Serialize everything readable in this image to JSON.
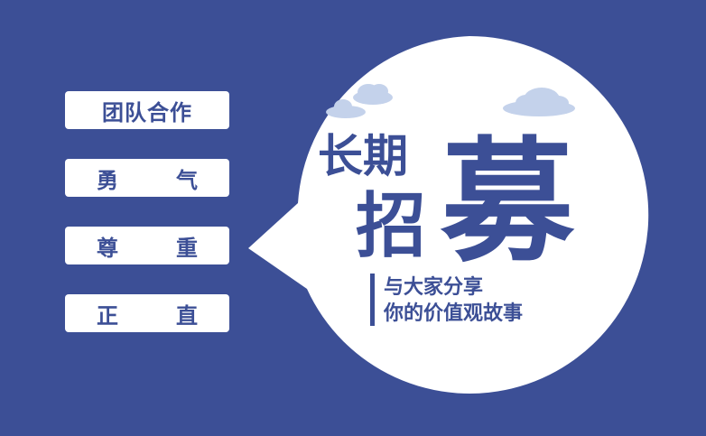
{
  "colors": {
    "background": "#3c4f96",
    "bubble": "#ffffff",
    "cloud": "#c4d2eb",
    "text": "#3c4f96"
  },
  "values": [
    "团队合作",
    "勇 气",
    "尊 重",
    "正 直"
  ],
  "values_split": [
    [
      "团队合作"
    ],
    [
      "勇",
      "气"
    ],
    [
      "尊",
      "重"
    ],
    [
      "正",
      "直"
    ]
  ],
  "headline": {
    "part1": "长期",
    "part2": "招",
    "part3": "募"
  },
  "tagline": {
    "line1": "与大家分享",
    "line2": "你的价值观故事"
  },
  "icons": [
    "cloud-icon",
    "cloud-icon"
  ]
}
